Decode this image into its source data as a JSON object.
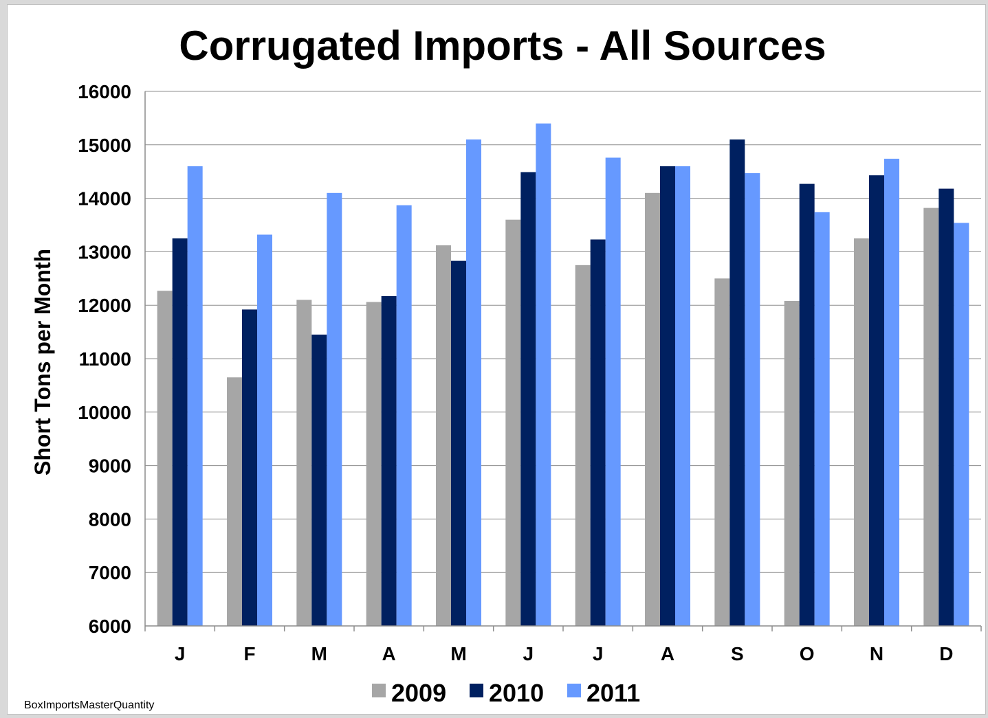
{
  "chart_data": {
    "type": "bar",
    "title": "Corrugated Imports - All Sources",
    "ylabel": "Short Tons per Month",
    "xlabel": "",
    "ylim": [
      6000,
      16000
    ],
    "yticks": [
      "6000",
      "7000",
      "8000",
      "9000",
      "10000",
      "11000",
      "12000",
      "13000",
      "14000",
      "15000",
      "16000"
    ],
    "categories": [
      "J",
      "F",
      "M",
      "A",
      "M",
      "J",
      "J",
      "A",
      "S",
      "O",
      "N",
      "D"
    ],
    "series": [
      {
        "name": "2009",
        "color": "#a6a6a6",
        "values": [
          12270,
          10650,
          12100,
          12060,
          13120,
          13600,
          12750,
          14100,
          12500,
          12080,
          13250,
          13820
        ]
      },
      {
        "name": "2010",
        "color": "#002060",
        "values": [
          13250,
          11920,
          11450,
          12170,
          12830,
          14490,
          13230,
          14600,
          15100,
          14270,
          14430,
          14180
        ]
      },
      {
        "name": "2011",
        "color": "#6699ff",
        "values": [
          14600,
          13320,
          14100,
          13870,
          15100,
          15400,
          14760,
          14600,
          14470,
          13740,
          14740,
          13540
        ]
      }
    ],
    "grid": true,
    "legend": "bottom-center"
  },
  "footer": {
    "source_label": "BoxImportsMasterQuantity"
  }
}
